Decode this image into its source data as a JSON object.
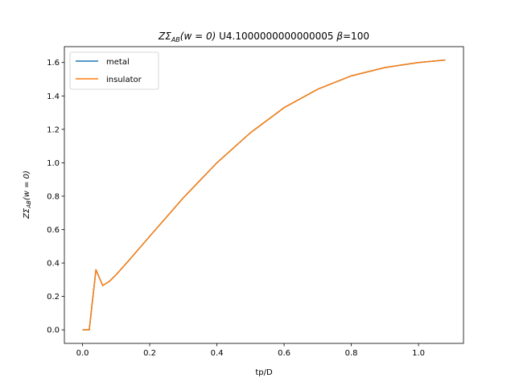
{
  "chart_data": {
    "type": "line",
    "title": "ZΣAB(w = 0) U4.1000000000000005 β=100",
    "title_parts": {
      "prefix": "ZΣ",
      "sub": "AB",
      "arg": "(w = 0)",
      "middle": " U4.1000000000000005 ",
      "beta": "β",
      "suffix": "=100"
    },
    "xlabel": "tp/D",
    "ylabel_parts": {
      "prefix": "ZΣ",
      "sub": "AB",
      "arg": "(w = 0)"
    },
    "xlim": [
      -0.054,
      1.134
    ],
    "ylim": [
      -0.081,
      1.695
    ],
    "xticks": [
      0.0,
      0.2,
      0.4,
      0.6,
      0.8,
      1.0
    ],
    "xtick_labels": [
      "0.0",
      "0.2",
      "0.4",
      "0.6",
      "0.8",
      "1.0"
    ],
    "yticks": [
      0.0,
      0.2,
      0.4,
      0.6,
      0.8,
      1.0,
      1.2,
      1.4,
      1.6
    ],
    "ytick_labels": [
      "0.0",
      "0.2",
      "0.4",
      "0.6",
      "0.8",
      "1.0",
      "1.2",
      "1.4",
      "1.6"
    ],
    "grid": false,
    "legend": "top-left",
    "series": [
      {
        "name": "metal",
        "color": "#1f77b4",
        "x": [
          0.0,
          0.02,
          0.04,
          0.06,
          0.08,
          0.1,
          0.14,
          0.2,
          0.3,
          0.4,
          0.5,
          0.6,
          0.7,
          0.8,
          0.9,
          1.0,
          1.08
        ],
        "y": [
          0.0,
          0.0,
          0.36,
          0.265,
          0.29,
          0.33,
          0.42,
          0.56,
          0.79,
          1.0,
          1.18,
          1.33,
          1.44,
          1.52,
          1.57,
          1.6,
          1.615
        ]
      },
      {
        "name": "insulator",
        "color": "#ff7f0e",
        "x": [
          0.0,
          0.02,
          0.04,
          0.06,
          0.08,
          0.1,
          0.14,
          0.2,
          0.3,
          0.4,
          0.5,
          0.6,
          0.7,
          0.8,
          0.9,
          1.0,
          1.08
        ],
        "y": [
          0.0,
          0.0,
          0.36,
          0.265,
          0.29,
          0.33,
          0.42,
          0.56,
          0.79,
          1.0,
          1.18,
          1.33,
          1.44,
          1.52,
          1.57,
          1.6,
          1.615
        ]
      }
    ]
  }
}
